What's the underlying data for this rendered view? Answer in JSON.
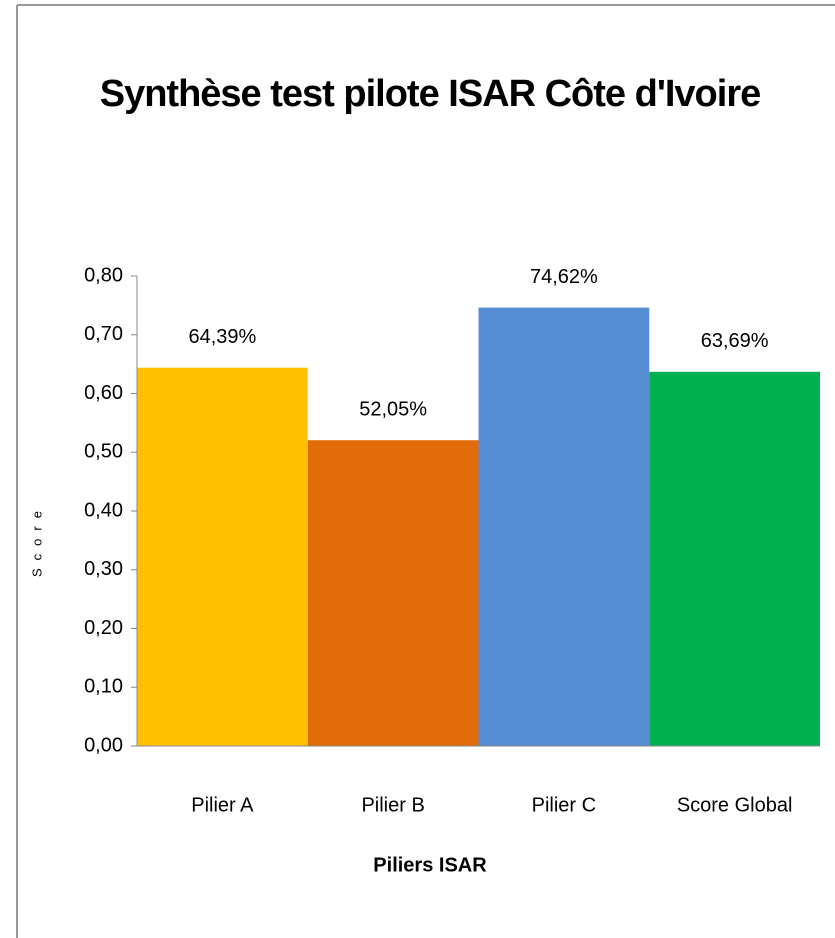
{
  "chart_data": {
    "type": "bar",
    "title": "Synthèse test pilote ISAR Côte d'Ivoire",
    "x_label": "Piliers ISAR",
    "y_label": "Score",
    "categories": [
      "Pilier A",
      "Pilier B",
      "Pilier C",
      "Score Global"
    ],
    "values": [
      0.6439,
      0.5205,
      0.7462,
      0.6369
    ],
    "value_labels": [
      "64,39%",
      "52,05%",
      "74,62%",
      "63,69%"
    ],
    "colors": [
      "#ffc000",
      "#e36c0a",
      "#558ed5",
      "#00b050"
    ],
    "ylim": [
      0,
      0.8
    ],
    "yticks": [
      {
        "value": 0,
        "label": "0,00"
      },
      {
        "value": 0.1,
        "label": "0,10"
      },
      {
        "value": 0.2,
        "label": "0,20"
      },
      {
        "value": 0.3,
        "label": "0,30"
      },
      {
        "value": 0.4,
        "label": "0,40"
      },
      {
        "value": 0.5,
        "label": "0,50"
      },
      {
        "value": 0.6,
        "label": "0,60"
      },
      {
        "value": 0.7,
        "label": "0,70"
      },
      {
        "value": 0.8,
        "label": "0,80"
      }
    ],
    "grid": false
  }
}
